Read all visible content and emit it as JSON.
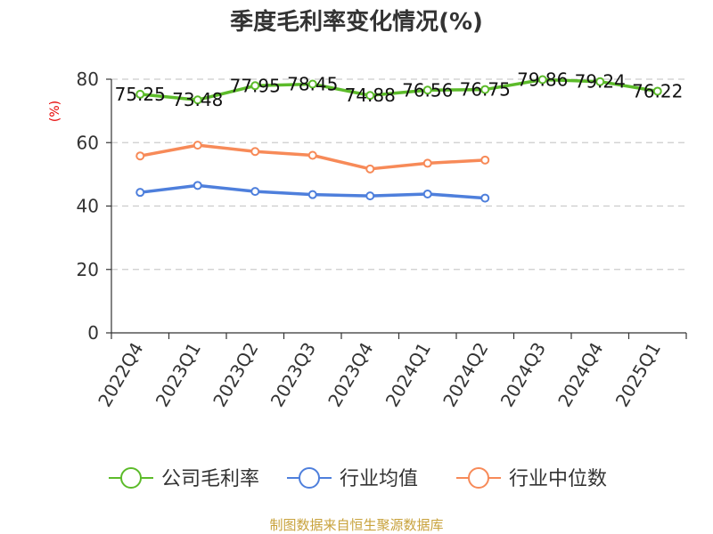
{
  "title": "季度毛利率变化情况(%)",
  "source": "制图数据来自恒生聚源数据库",
  "chart_data": {
    "type": "line",
    "title": "季度毛利率变化情况(%)",
    "ylabel": "(%)",
    "ylim": [
      0,
      80
    ],
    "yticks": [
      0,
      20,
      40,
      60,
      80
    ],
    "grid": true,
    "legend_position": "bottom",
    "categories": [
      "2022Q4",
      "2023Q1",
      "2023Q2",
      "2023Q3",
      "2023Q4",
      "2024Q1",
      "2024Q2",
      "2024Q3",
      "2024Q4",
      "2025Q1"
    ],
    "series": [
      {
        "name": "公司毛利率",
        "color": "#5cbb2a",
        "values": [
          75.25,
          73.48,
          77.95,
          78.45,
          74.88,
          76.56,
          76.75,
          79.86,
          79.24,
          76.22
        ],
        "labels": [
          "75.25",
          "73.48",
          "77.95",
          "78.45",
          "74.88",
          "76.56",
          "76.75",
          "79.86",
          "79.24",
          "76.22"
        ]
      },
      {
        "name": "行业均值",
        "color": "#4e7fdc",
        "values": [
          44.3,
          46.5,
          44.6,
          43.6,
          43.2,
          43.8,
          42.5,
          null,
          null,
          null
        ]
      },
      {
        "name": "行业中位数",
        "color": "#f78a58",
        "values": [
          55.8,
          59.2,
          57.2,
          56.0,
          51.7,
          53.5,
          54.5,
          null,
          null,
          null
        ]
      }
    ]
  }
}
